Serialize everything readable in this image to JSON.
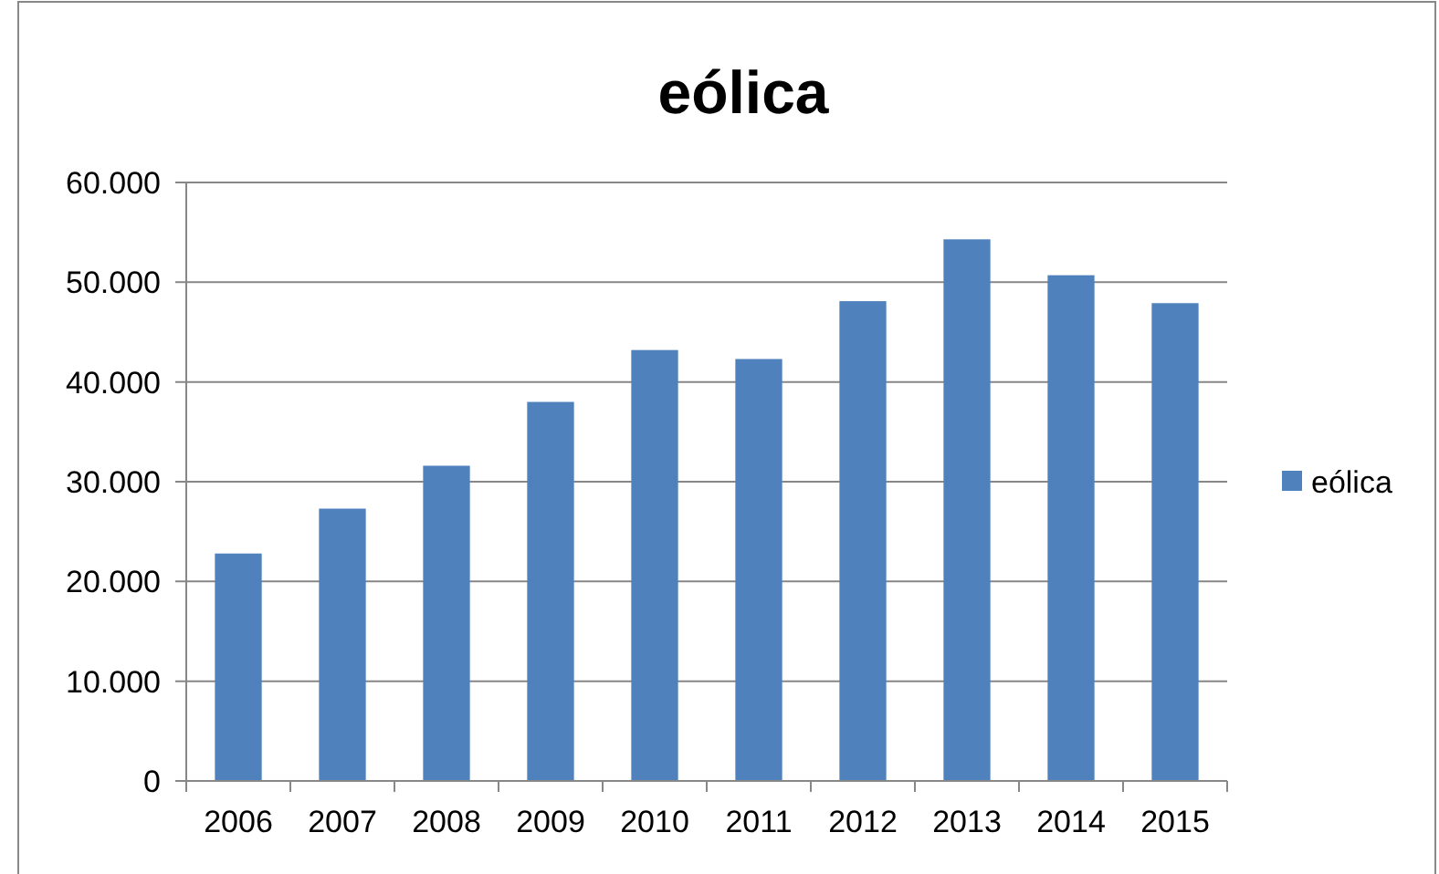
{
  "chart_data": {
    "type": "bar",
    "title": "eólica",
    "categories": [
      "2006",
      "2007",
      "2008",
      "2009",
      "2010",
      "2011",
      "2012",
      "2013",
      "2014",
      "2015"
    ],
    "series": [
      {
        "name": "eólica",
        "color": "#4f81bd",
        "values": [
          22800,
          27300,
          31600,
          38000,
          43200,
          42300,
          48100,
          54300,
          50700,
          47900
        ]
      }
    ],
    "ylim": [
      0,
      60000
    ],
    "yticks": [
      0,
      {
        "value": 10000,
        "label": "10.000"
      },
      {
        "value": 20000,
        "label": "20.000"
      },
      {
        "value": 30000,
        "label": "30.000"
      },
      {
        "value": 40000,
        "label": "40.000"
      },
      {
        "value": 50000,
        "label": "50.000"
      },
      {
        "value": 60000,
        "label": "60.000"
      }
    ],
    "grid": "y",
    "legend": "right"
  }
}
